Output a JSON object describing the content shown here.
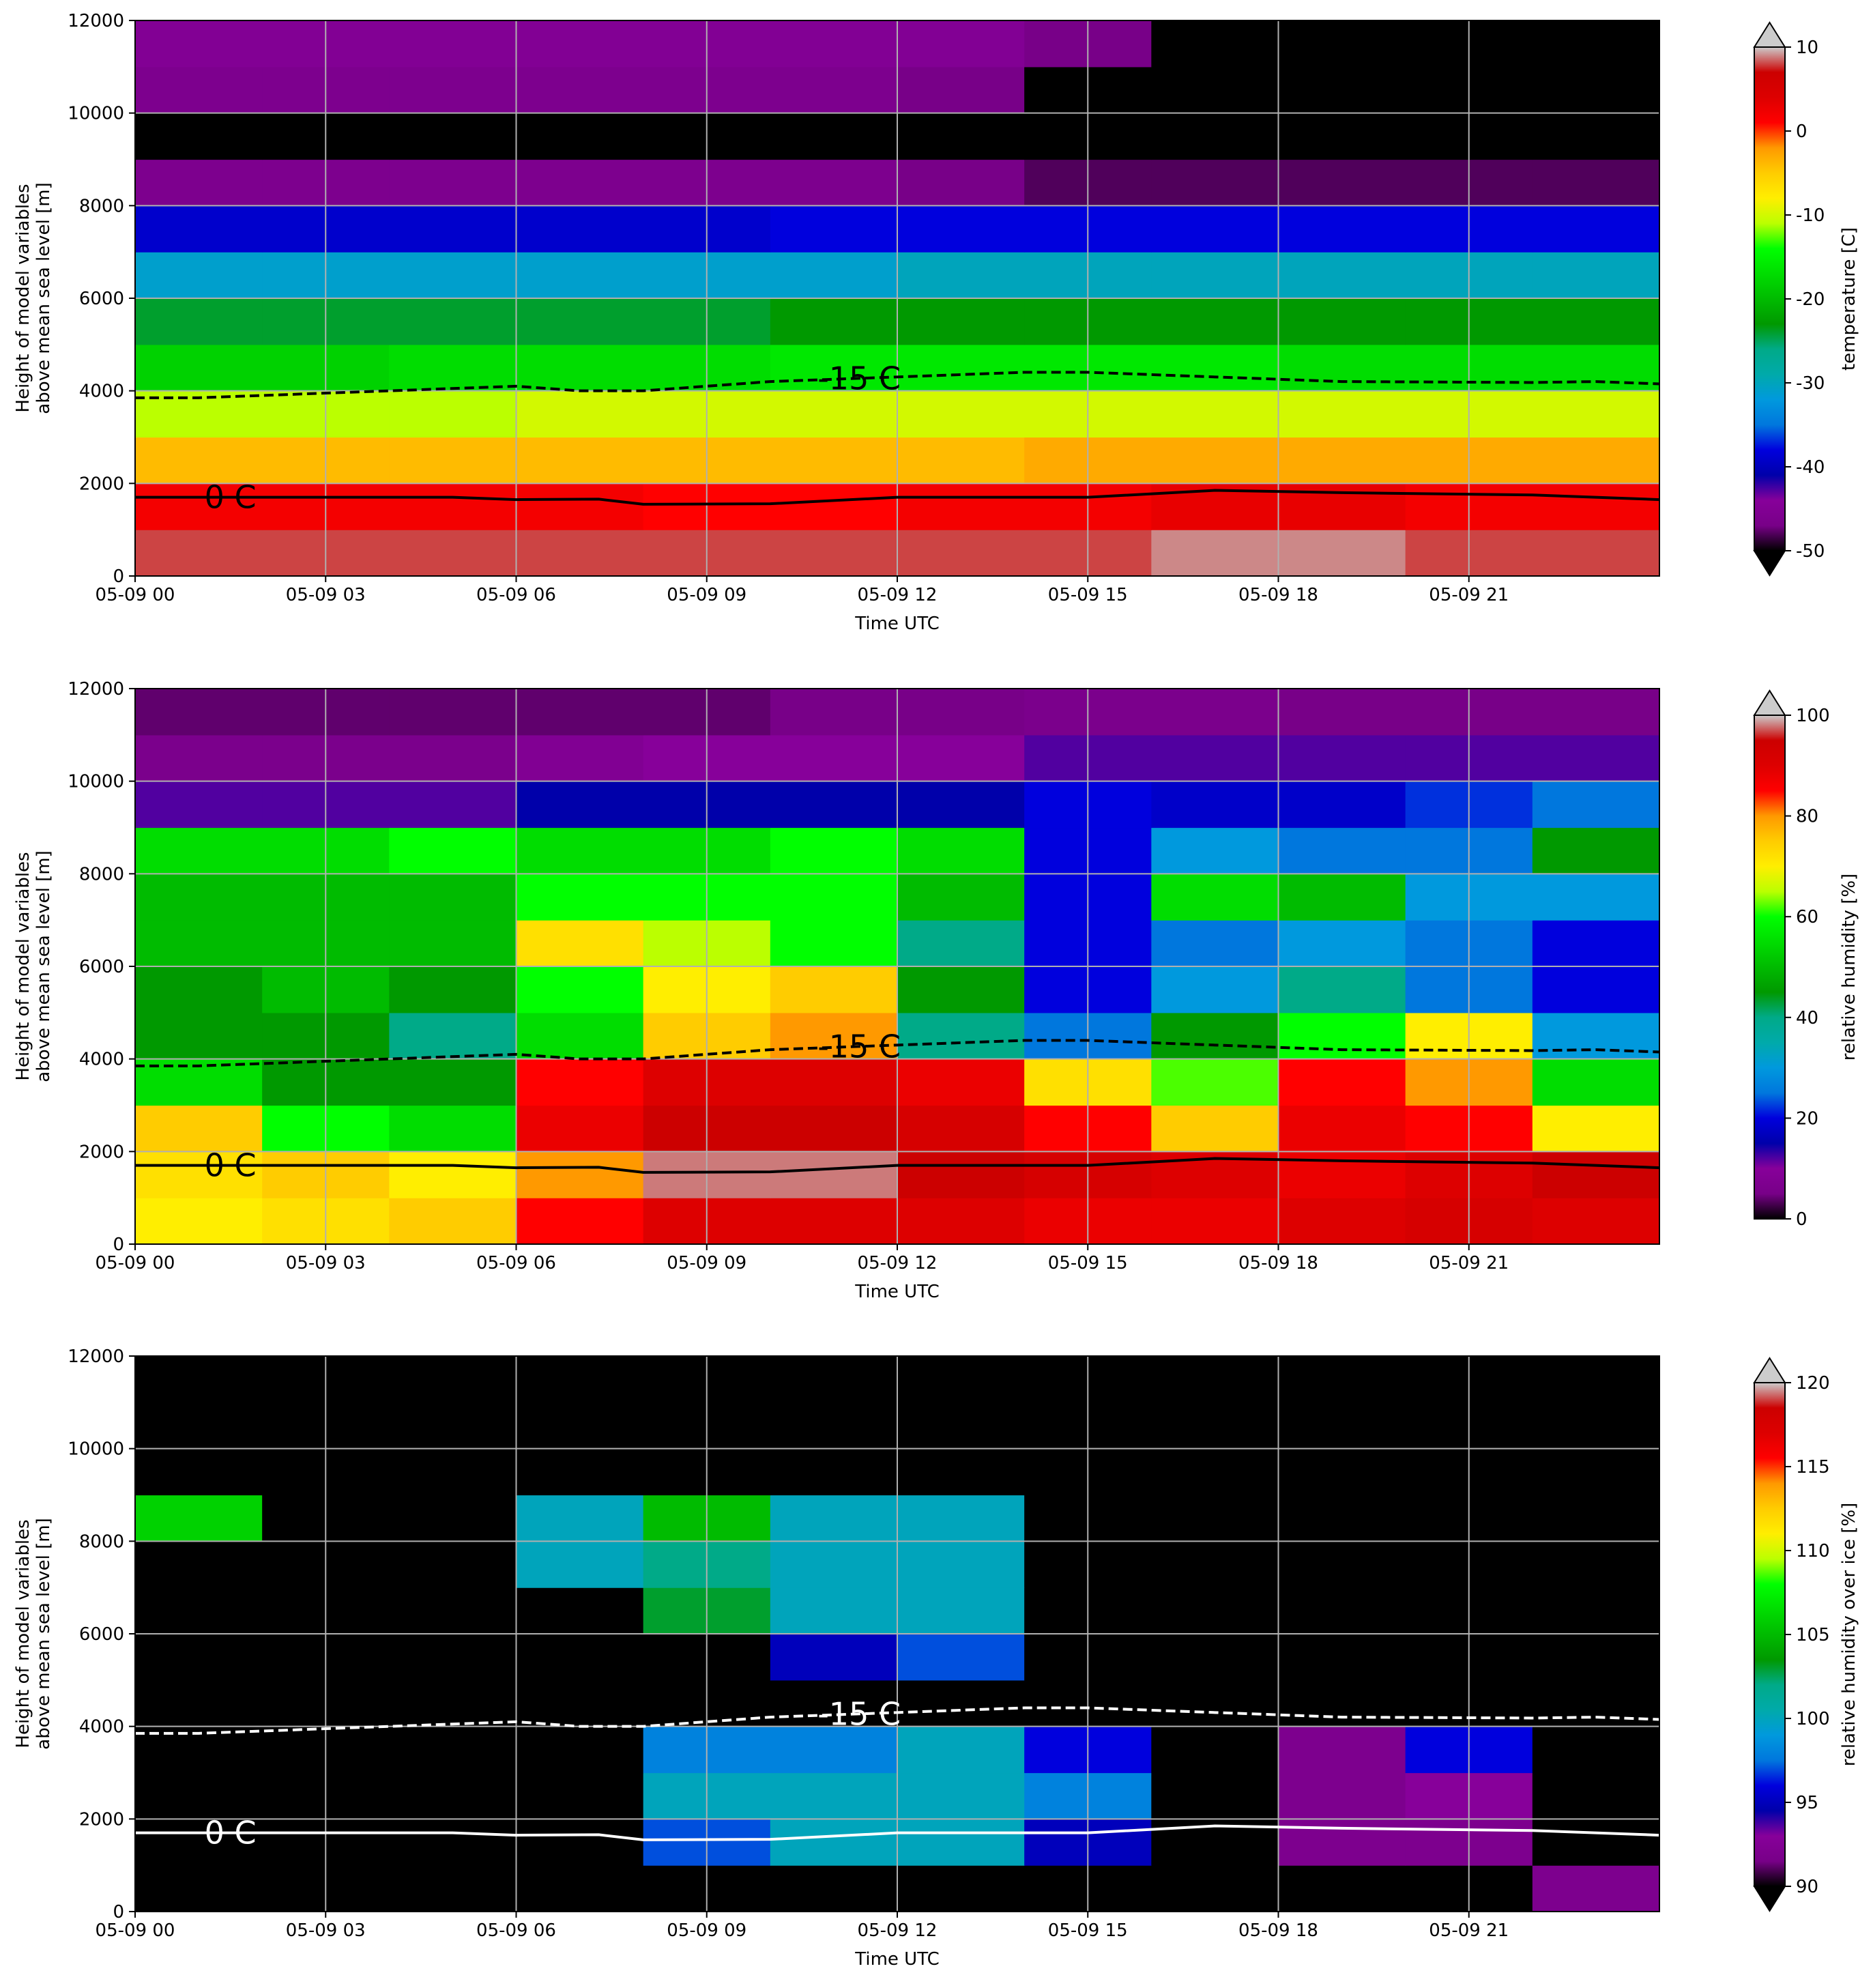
{
  "chart_data": [
    {
      "type": "heatmap",
      "xlabel": "Time UTC",
      "ylabel": [
        "Height of model variables",
        "above mean sea level [m]"
      ],
      "x": [
        1,
        3,
        5,
        7,
        9,
        11,
        13,
        15,
        17,
        19,
        21,
        23
      ],
      "y": [
        500,
        1500,
        2500,
        3500,
        4500,
        5500,
        6500,
        7500,
        8500,
        9500,
        10500,
        11500
      ],
      "values": [
        [
          8,
          8,
          8,
          8,
          8,
          8,
          8,
          8,
          9,
          9,
          8,
          8
        ],
        [
          2,
          2,
          2,
          2,
          1,
          1,
          2,
          2,
          3,
          3,
          2,
          2
        ],
        [
          -4,
          -4,
          -4,
          -4,
          -4,
          -4,
          -4,
          -3,
          -3,
          -3,
          -3,
          -3
        ],
        [
          -11,
          -11,
          -11,
          -10,
          -10,
          -10,
          -10,
          -10,
          -10,
          -10,
          -10,
          -10
        ],
        [
          -18,
          -18,
          -17,
          -17,
          -17,
          -16,
          -16,
          -16,
          -16,
          -17,
          -17,
          -17
        ],
        [
          -24,
          -24,
          -24,
          -24,
          -24,
          -23,
          -23,
          -23,
          -23,
          -23,
          -23,
          -23
        ],
        [
          -31,
          -31,
          -31,
          -31,
          -31,
          -31,
          -30,
          -30,
          -30,
          -30,
          -30,
          -30
        ],
        [
          -39,
          -39,
          -39,
          -39,
          -39,
          -38,
          -38,
          -38,
          -38,
          -38,
          -38,
          -38
        ],
        [
          -46,
          -46,
          -46,
          -46,
          -46,
          -46,
          -47,
          -48,
          -48,
          -48,
          -48,
          -48
        ],
        [
          -53,
          -53,
          -53,
          -53,
          -53,
          -53,
          -53,
          -53,
          -53,
          -53,
          -53,
          -53
        ],
        [
          -46,
          -46,
          -46,
          -46,
          -46,
          -46,
          -47,
          -50,
          -52,
          -53,
          -52,
          -52
        ],
        [
          -45,
          -45,
          -45,
          -45,
          -45,
          -45,
          -45,
          -47,
          -50,
          -51,
          -50,
          -50
        ]
      ],
      "xlim": [
        0,
        24
      ],
      "ylim": [
        0,
        12000
      ],
      "xticks": [
        {
          "value": 0,
          "label": "05-09 00"
        },
        {
          "value": 3,
          "label": "05-09 03"
        },
        {
          "value": 6,
          "label": "05-09 06"
        },
        {
          "value": 9,
          "label": "05-09 09"
        },
        {
          "value": 12,
          "label": "05-09 12"
        },
        {
          "value": 15,
          "label": "05-09 15"
        },
        {
          "value": 18,
          "label": "05-09 18"
        },
        {
          "value": 21,
          "label": "05-09 21"
        }
      ],
      "yticks": [
        0,
        2000,
        4000,
        6000,
        8000,
        10000,
        12000
      ],
      "grid": true,
      "clim": [
        -50,
        10
      ],
      "cticks": [
        -50,
        -40,
        -30,
        -20,
        -10,
        0,
        10
      ],
      "colorbar_label": "temperature [C]",
      "extend": "both",
      "colormap": [
        "#000000",
        "#780088",
        "#87009a",
        "#0000aa",
        "#0000dd",
        "#0077dd",
        "#0099dd",
        "#00aaaa",
        "#00aa88",
        "#009900",
        "#00bb00",
        "#00dd00",
        "#00ff00",
        "#bbff00",
        "#ffee00",
        "#ffcc00",
        "#ff9900",
        "#ff0000",
        "#dd0000",
        "#cc0000",
        "#cccccc"
      ],
      "under_color": "#000000",
      "over_color": "#cccccc",
      "contours": [
        {
          "label": "0 C",
          "color": "#000000",
          "style": "solid",
          "x": [
            0,
            3,
            5,
            6,
            7.3,
            8,
            10,
            12,
            15,
            17,
            19,
            22,
            24
          ],
          "y": [
            1700,
            1700,
            1700,
            1650,
            1660,
            1550,
            1560,
            1700,
            1700,
            1850,
            1800,
            1750,
            1650
          ]
        },
        {
          "label": "-15 C",
          "color": "#000000",
          "style": "dashed",
          "x": [
            0,
            1,
            3,
            6,
            7,
            8,
            10,
            12,
            14,
            15,
            17,
            19,
            22,
            23,
            24
          ],
          "y": [
            3850,
            3850,
            3950,
            4100,
            4000,
            4000,
            4200,
            4300,
            4400,
            4400,
            4300,
            4200,
            4180,
            4200,
            4150
          ]
        }
      ]
    },
    {
      "type": "heatmap",
      "xlabel": "Time UTC",
      "ylabel": [
        "Height of model variables",
        "above mean sea level [m]"
      ],
      "x": [
        1,
        3,
        5,
        7,
        9,
        11,
        13,
        15,
        17,
        19,
        21,
        23
      ],
      "y": [
        500,
        1500,
        2500,
        3500,
        4500,
        5500,
        6500,
        7500,
        8500,
        9500,
        10500,
        11500
      ],
      "values": [
        [
          70,
          72,
          75,
          85,
          90,
          90,
          90,
          88,
          88,
          90,
          92,
          90
        ],
        [
          72,
          75,
          70,
          80,
          98,
          98,
          95,
          92,
          90,
          88,
          90,
          95
        ],
        [
          75,
          60,
          55,
          88,
          95,
          95,
          92,
          85,
          75,
          88,
          85,
          70
        ],
        [
          55,
          45,
          45,
          85,
          90,
          90,
          88,
          72,
          62,
          85,
          80,
          55
        ],
        [
          45,
          45,
          40,
          55,
          75,
          80,
          40,
          25,
          45,
          60,
          70,
          30
        ],
        [
          45,
          50,
          45,
          60,
          70,
          75,
          45,
          20,
          30,
          40,
          25,
          20
        ],
        [
          50,
          50,
          50,
          72,
          65,
          60,
          40,
          20,
          25,
          30,
          25,
          20
        ],
        [
          50,
          50,
          50,
          60,
          60,
          60,
          50,
          20,
          55,
          50,
          30,
          30
        ],
        [
          55,
          55,
          60,
          55,
          55,
          60,
          55,
          20,
          30,
          25,
          25,
          45
        ],
        [
          12,
          12,
          12,
          15,
          15,
          15,
          15,
          20,
          18,
          18,
          22,
          25
        ],
        [
          6,
          6,
          6,
          8,
          10,
          10,
          10,
          12,
          12,
          12,
          12,
          12
        ],
        [
          4,
          4,
          4,
          4,
          4,
          5,
          5,
          6,
          6,
          5,
          5,
          5
        ]
      ],
      "xlim": [
        0,
        24
      ],
      "ylim": [
        0,
        12000
      ],
      "xticks": [
        {
          "value": 0,
          "label": "05-09 00"
        },
        {
          "value": 3,
          "label": "05-09 03"
        },
        {
          "value": 6,
          "label": "05-09 06"
        },
        {
          "value": 9,
          "label": "05-09 09"
        },
        {
          "value": 12,
          "label": "05-09 12"
        },
        {
          "value": 15,
          "label": "05-09 15"
        },
        {
          "value": 18,
          "label": "05-09 18"
        },
        {
          "value": 21,
          "label": "05-09 21"
        }
      ],
      "yticks": [
        0,
        2000,
        4000,
        6000,
        8000,
        10000,
        12000
      ],
      "grid": true,
      "clim": [
        0,
        100
      ],
      "cticks": [
        0,
        20,
        40,
        60,
        80,
        100
      ],
      "colorbar_label": "relative humidity [%]",
      "extend": "max",
      "colormap": [
        "#000000",
        "#780088",
        "#87009a",
        "#0000aa",
        "#0000dd",
        "#0077dd",
        "#0099dd",
        "#00aaaa",
        "#00aa88",
        "#009900",
        "#00bb00",
        "#00dd00",
        "#00ff00",
        "#bbff00",
        "#ffee00",
        "#ffcc00",
        "#ff9900",
        "#ff0000",
        "#dd0000",
        "#cc0000",
        "#cccccc"
      ],
      "under_color": "#000000",
      "over_color": "#cccccc",
      "contours": [
        {
          "label": "0 C",
          "color": "#000000",
          "style": "solid",
          "x": [
            0,
            3,
            5,
            6,
            7.3,
            8,
            10,
            12,
            15,
            17,
            19,
            22,
            24
          ],
          "y": [
            1700,
            1700,
            1700,
            1650,
            1660,
            1550,
            1560,
            1700,
            1700,
            1850,
            1800,
            1750,
            1650
          ]
        },
        {
          "label": "-15 C",
          "color": "#000000",
          "style": "dashed",
          "x": [
            0,
            1,
            3,
            6,
            7,
            8,
            10,
            12,
            14,
            15,
            17,
            19,
            22,
            23,
            24
          ],
          "y": [
            3850,
            3850,
            3950,
            4100,
            4000,
            4000,
            4200,
            4300,
            4400,
            4400,
            4300,
            4200,
            4180,
            4200,
            4150
          ]
        }
      ]
    },
    {
      "type": "heatmap",
      "xlabel": "Time UTC",
      "ylabel": [
        "Height of model variables",
        "above mean sea level [m]"
      ],
      "x": [
        1,
        3,
        5,
        7,
        9,
        11,
        13,
        15,
        17,
        19,
        21,
        23
      ],
      "y": [
        500,
        1500,
        2500,
        3500,
        4500,
        5500,
        6500,
        7500,
        8500,
        9500,
        10500,
        11500
      ],
      "values": [
        [
          80,
          80,
          80,
          80,
          80,
          80,
          80,
          80,
          80,
          80,
          80,
          92
        ],
        [
          80,
          80,
          80,
          80,
          97,
          100,
          100,
          95,
          90,
          92,
          92,
          80
        ],
        [
          80,
          80,
          80,
          80,
          100,
          100,
          100,
          98,
          80,
          92,
          93,
          80
        ],
        [
          80,
          80,
          80,
          80,
          98,
          98,
          100,
          96,
          80,
          92,
          96,
          80
        ],
        [
          80,
          80,
          80,
          80,
          80,
          80,
          80,
          80,
          80,
          80,
          80,
          80
        ],
        [
          80,
          80,
          80,
          80,
          80,
          95,
          97,
          80,
          80,
          80,
          80,
          80
        ],
        [
          80,
          80,
          80,
          80,
          103,
          100,
          100,
          80,
          80,
          80,
          80,
          80
        ],
        [
          80,
          80,
          80,
          100,
          102,
          100,
          100,
          80,
          80,
          80,
          80,
          80
        ],
        [
          106,
          80,
          80,
          100,
          105,
          100,
          100,
          80,
          80,
          80,
          80,
          80
        ],
        [
          80,
          80,
          80,
          80,
          80,
          80,
          80,
          80,
          80,
          80,
          80,
          80
        ],
        [
          80,
          80,
          80,
          80,
          80,
          80,
          80,
          80,
          80,
          80,
          80,
          80
        ],
        [
          80,
          80,
          80,
          80,
          80,
          80,
          80,
          80,
          80,
          80,
          80,
          80
        ]
      ],
      "xlim": [
        0,
        24
      ],
      "ylim": [
        0,
        12000
      ],
      "xticks": [
        {
          "value": 0,
          "label": "05-09 00"
        },
        {
          "value": 3,
          "label": "05-09 03"
        },
        {
          "value": 6,
          "label": "05-09 06"
        },
        {
          "value": 9,
          "label": "05-09 09"
        },
        {
          "value": 12,
          "label": "05-09 12"
        },
        {
          "value": 15,
          "label": "05-09 15"
        },
        {
          "value": 18,
          "label": "05-09 18"
        },
        {
          "value": 21,
          "label": "05-09 21"
        }
      ],
      "yticks": [
        0,
        2000,
        4000,
        6000,
        8000,
        10000,
        12000
      ],
      "grid": true,
      "clim": [
        90,
        120
      ],
      "cticks": [
        90,
        95,
        100,
        105,
        110,
        115,
        120
      ],
      "colorbar_label": "relative humidity over ice [%]",
      "extend": "both",
      "colormap": [
        "#000000",
        "#780088",
        "#87009a",
        "#0000aa",
        "#0000dd",
        "#0077dd",
        "#0099dd",
        "#00aaaa",
        "#00aa88",
        "#009900",
        "#00bb00",
        "#00dd00",
        "#00ff00",
        "#bbff00",
        "#ffee00",
        "#ffcc00",
        "#ff9900",
        "#ff0000",
        "#dd0000",
        "#cc0000",
        "#cccccc"
      ],
      "under_color": "#000000",
      "over_color": "#cccccc",
      "contours": [
        {
          "label": "0 C",
          "color": "#ffffff",
          "style": "solid",
          "x": [
            0,
            3,
            5,
            6,
            7.3,
            8,
            10,
            12,
            15,
            17,
            19,
            22,
            24
          ],
          "y": [
            1700,
            1700,
            1700,
            1650,
            1660,
            1550,
            1560,
            1700,
            1700,
            1850,
            1800,
            1750,
            1650
          ]
        },
        {
          "label": "-15 C",
          "color": "#ffffff",
          "style": "dashed",
          "x": [
            0,
            1,
            3,
            6,
            7,
            8,
            10,
            12,
            14,
            15,
            17,
            19,
            22,
            23,
            24
          ],
          "y": [
            3850,
            3850,
            3950,
            4100,
            4000,
            4000,
            4200,
            4300,
            4400,
            4400,
            4300,
            4200,
            4180,
            4200,
            4150
          ]
        }
      ]
    }
  ]
}
